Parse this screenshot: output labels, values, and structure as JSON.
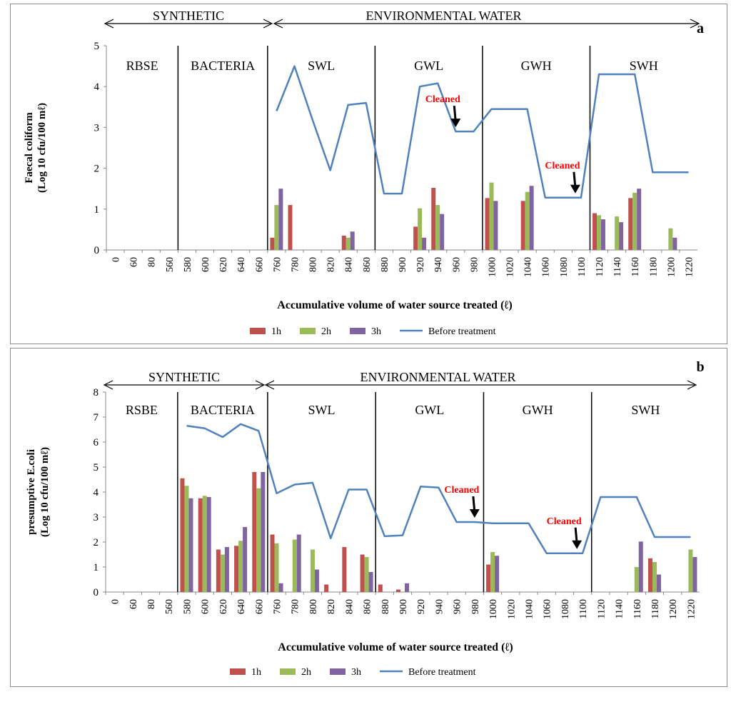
{
  "panels": [
    {
      "id": "a",
      "panel_label": "a",
      "ylabel_line1": "Faecal coliform",
      "ylabel_line2": "(Log 10 cfu/100 mℓ)",
      "xlabel": "Accumulative volume of water source treated (ℓ)",
      "region_synthetic": "SYNTHETIC",
      "region_env": "ENVIRONMENTAL WATER",
      "sections": [
        "RBSE",
        "BACTERIA",
        "SWL",
        "GWL",
        "GWH",
        "SWH"
      ],
      "cleaned_label": "Cleaned",
      "legend": [
        "1h",
        "2h",
        "3h",
        "Before treatment"
      ]
    },
    {
      "id": "b",
      "panel_label": "b",
      "ylabel_line1": "presumptive E.coli",
      "ylabel_line2": "(Log 10 cfu/100 mℓ)",
      "xlabel": "Accumulative volume of water source treated (ℓ)",
      "region_synthetic": "SYNTHETIC",
      "region_env": "ENVIRONMENTAL WATER",
      "sections": [
        "RSBE",
        "BACTERIA",
        "SWL",
        "GWL",
        "GWH",
        "SWH"
      ],
      "cleaned_label": "Cleaned",
      "legend": [
        "1h",
        "2h",
        "3h",
        "Before treatment"
      ]
    }
  ],
  "colors": {
    "h1": "#c0504d",
    "h2": "#9bbb59",
    "h3": "#8064a2",
    "before": "#4f81bd",
    "cleaned": "#ff0000"
  },
  "chart_data": [
    {
      "type": "bar+line",
      "title": "",
      "xlabel": "Accumulative volume of water source treated (ℓ)",
      "ylabel": "Faecal coliform (Log 10 cfu/100 mℓ)",
      "ylim": [
        0,
        5
      ],
      "yticks": [
        0,
        1,
        2,
        3,
        4,
        5
      ],
      "categories": [
        "0",
        "60",
        "80",
        "560",
        "580",
        "600",
        "620",
        "640",
        "660",
        "760",
        "780",
        "800",
        "820",
        "840",
        "860",
        "880",
        "900",
        "920",
        "940",
        "960",
        "980",
        "1000",
        "1020",
        "1040",
        "1060",
        "1080",
        "1100",
        "1120",
        "1140",
        "1160",
        "1180",
        "1200",
        "1220"
      ],
      "section_boundaries_after_index": [
        3,
        8,
        14,
        20,
        26
      ],
      "series": [
        {
          "name": "1h",
          "type": "bar",
          "values": [
            0,
            0,
            0,
            0,
            0,
            0,
            0,
            0,
            0,
            0.3,
            1.1,
            0,
            0,
            0.35,
            0,
            0,
            0,
            0.57,
            1.52,
            0,
            0,
            1.27,
            0,
            1.2,
            0,
            0,
            0,
            0.9,
            0,
            1.27,
            0,
            0,
            0
          ]
        },
        {
          "name": "2h",
          "type": "bar",
          "values": [
            0,
            0,
            0,
            0,
            0,
            0,
            0,
            0,
            0,
            1.1,
            0,
            0,
            0,
            0.3,
            0,
            0,
            0,
            1.02,
            1.1,
            0,
            0,
            1.65,
            0,
            1.42,
            0,
            0,
            0,
            0.85,
            0.82,
            1.4,
            0,
            0.53,
            0
          ]
        },
        {
          "name": "3h",
          "type": "bar",
          "values": [
            0,
            0,
            0,
            0,
            0,
            0,
            0,
            0,
            0,
            1.5,
            0,
            0,
            0,
            0.45,
            0,
            0,
            0,
            0.3,
            0.88,
            0,
            0,
            1.2,
            0,
            1.57,
            0,
            0,
            0,
            0.75,
            0.68,
            1.5,
            0,
            0.3,
            0
          ]
        },
        {
          "name": "Before treatment",
          "type": "line",
          "values": [
            null,
            null,
            null,
            null,
            null,
            null,
            null,
            null,
            null,
            3.4,
            4.5,
            3.2,
            1.95,
            3.55,
            3.6,
            1.38,
            1.38,
            4.0,
            4.08,
            2.9,
            2.9,
            3.45,
            3.45,
            3.45,
            1.28,
            1.28,
            1.28,
            4.3,
            4.3,
            4.3,
            1.9,
            1.9,
            1.9
          ]
        }
      ],
      "annotations": [
        {
          "text": "Cleaned",
          "at_category": "960"
        },
        {
          "text": "Cleaned",
          "at_category": "1100"
        }
      ]
    },
    {
      "type": "bar+line",
      "title": "",
      "xlabel": "Accumulative volume of water source treated (ℓ)",
      "ylabel": "presumptive E.coli (Log 10 cfu/100 mℓ)",
      "ylim": [
        0,
        8
      ],
      "yticks": [
        0,
        1,
        2,
        3,
        4,
        5,
        6,
        7,
        8
      ],
      "categories": [
        "0",
        "60",
        "80",
        "560",
        "580",
        "600",
        "620",
        "640",
        "660",
        "760",
        "780",
        "800",
        "820",
        "840",
        "860",
        "880",
        "900",
        "920",
        "940",
        "960",
        "980",
        "1000",
        "1020",
        "1040",
        "1060",
        "1080",
        "1100",
        "1120",
        "1140",
        "1160",
        "1180",
        "1200",
        "1220"
      ],
      "section_boundaries_after_index": [
        3,
        8,
        14,
        20,
        26
      ],
      "series": [
        {
          "name": "1h",
          "type": "bar",
          "values": [
            0,
            0,
            0,
            0,
            4.55,
            3.75,
            1.7,
            1.85,
            4.8,
            2.3,
            0,
            0,
            0.3,
            1.8,
            1.5,
            0.3,
            0.1,
            0,
            0,
            0,
            0,
            1.1,
            0,
            0,
            0,
            0,
            0,
            0,
            0,
            0,
            1.35,
            0,
            0
          ]
        },
        {
          "name": "2h",
          "type": "bar",
          "values": [
            0,
            0,
            0,
            0,
            4.25,
            3.85,
            1.5,
            2.05,
            4.15,
            1.95,
            2.1,
            1.7,
            0,
            0,
            1.4,
            0,
            0,
            0,
            0,
            0,
            0,
            1.6,
            0,
            0,
            0,
            0,
            0,
            0,
            0,
            1.0,
            1.2,
            0,
            1.7
          ]
        },
        {
          "name": "3h",
          "type": "bar",
          "values": [
            0,
            0,
            0,
            0,
            3.75,
            3.8,
            1.8,
            2.6,
            4.8,
            0.35,
            2.3,
            0.9,
            0,
            0,
            0.8,
            0,
            0.35,
            0,
            0,
            0,
            0,
            1.45,
            0,
            0,
            0,
            0,
            0,
            0,
            0,
            2.02,
            0.7,
            0,
            1.4
          ]
        },
        {
          "name": "Before treatment",
          "type": "line",
          "values": [
            null,
            null,
            null,
            null,
            6.65,
            6.55,
            6.2,
            6.72,
            6.45,
            3.95,
            4.3,
            4.37,
            2.15,
            4.1,
            4.1,
            2.23,
            2.27,
            4.22,
            4.18,
            2.8,
            2.8,
            2.75,
            2.75,
            2.75,
            1.55,
            1.55,
            1.55,
            3.8,
            3.8,
            3.8,
            2.2,
            2.2,
            2.2
          ]
        }
      ],
      "annotations": [
        {
          "text": "Cleaned",
          "at_category": "980"
        },
        {
          "text": "Cleaned",
          "at_category": "1100"
        }
      ]
    }
  ]
}
